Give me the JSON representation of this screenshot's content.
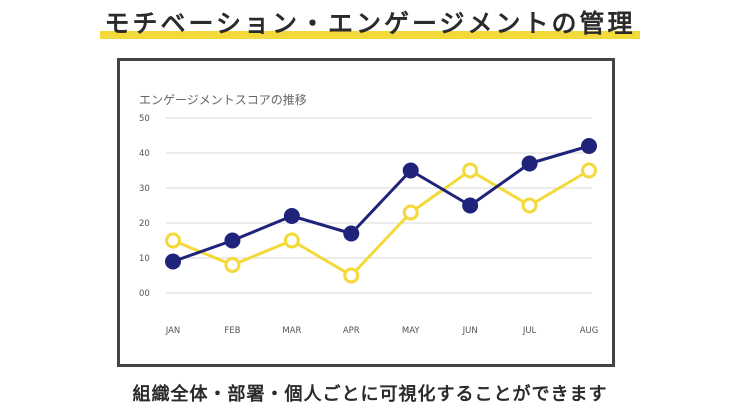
{
  "header": {
    "title": "モチベーション・エンゲージメントの管理"
  },
  "footer": {
    "caption": "組織全体・部署・個人ごとに可視化することができます"
  },
  "colors": {
    "navy": "#1f237a",
    "yellow": "#f4d93a",
    "grid": "#d9d9d9"
  },
  "chart_data": {
    "type": "line",
    "title": "エンゲージメントスコアの推移",
    "categories": [
      "JAN",
      "FEB",
      "MAR",
      "APR",
      "MAY",
      "JUN",
      "JUL",
      "AUG"
    ],
    "y_tick_labels": [
      "00",
      "10",
      "20",
      "30",
      "40",
      "50"
    ],
    "ylim": [
      0,
      50
    ],
    "grid": true,
    "series": [
      {
        "color": "navy",
        "marker": "filled",
        "values": [
          9,
          15,
          22,
          17,
          35,
          25,
          37,
          42
        ]
      },
      {
        "color": "yellow",
        "marker": "hollow",
        "values": [
          15,
          8,
          15,
          5,
          23,
          35,
          25,
          35
        ]
      }
    ]
  }
}
